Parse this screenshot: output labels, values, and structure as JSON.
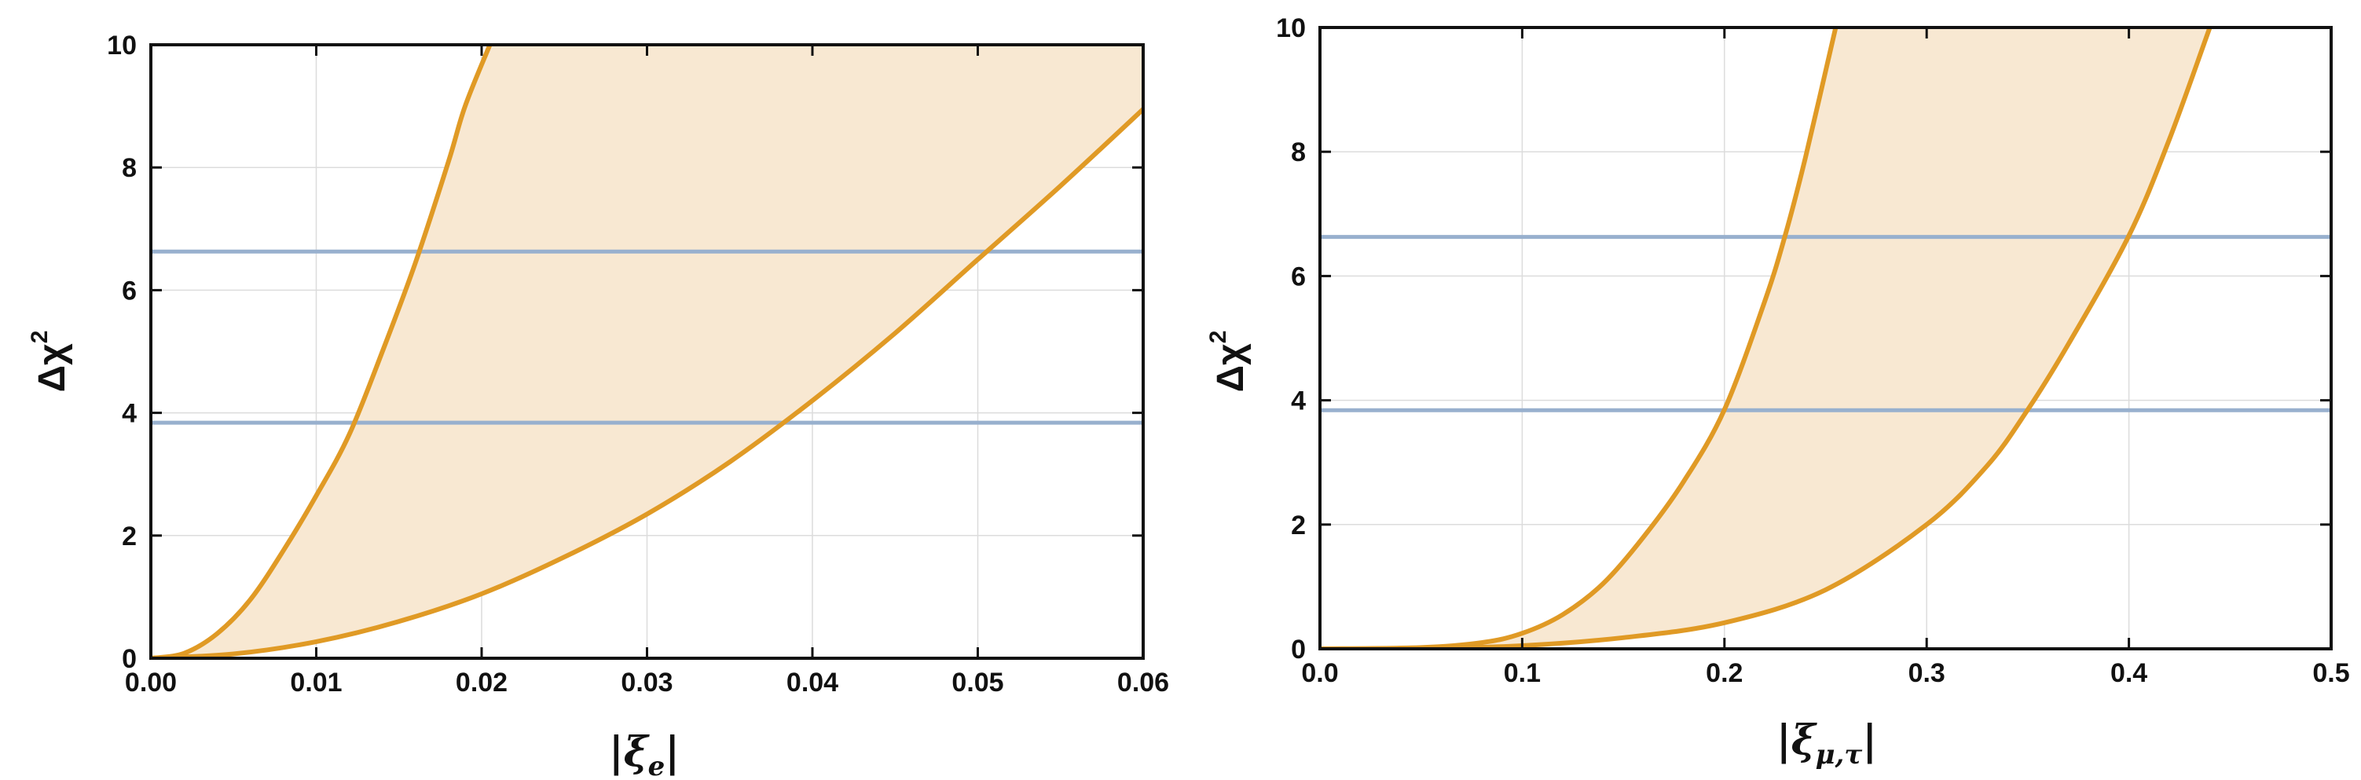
{
  "colors": {
    "curve": "#E09A25",
    "band": "#F8E8D2",
    "hline": "#98B0CE",
    "grid": "#dcdcdc",
    "frame": "#111111"
  },
  "chart_data": [
    {
      "type": "area",
      "xlabel_main": "|ξ",
      "xlabel_sub": "e",
      "xlabel_close": "|",
      "ylabel_main": "Δχ",
      "ylabel_sup": "2",
      "xlim": [
        0,
        0.06
      ],
      "ylim": [
        0,
        10
      ],
      "xticks": [
        "0.00",
        "0.01",
        "0.02",
        "0.03",
        "0.04",
        "0.05",
        "0.06"
      ],
      "yticks": [
        "0",
        "2",
        "4",
        "6",
        "8",
        "10"
      ],
      "grid": true,
      "series": [
        {
          "role": "upper-curve",
          "x": [
            0,
            0.002,
            0.004,
            0.006,
            0.008,
            0.01,
            0.012,
            0.014,
            0.016,
            0.018,
            0.019,
            0.0205
          ],
          "y": [
            0,
            0.08,
            0.4,
            0.95,
            1.75,
            2.65,
            3.65,
            5.0,
            6.45,
            8.1,
            9.0,
            10.0
          ]
        },
        {
          "role": "lower-curve",
          "x": [
            0,
            0.005,
            0.01,
            0.015,
            0.02,
            0.025,
            0.03,
            0.035,
            0.04,
            0.045,
            0.05,
            0.055,
            0.06
          ],
          "y": [
            0,
            0.07,
            0.27,
            0.6,
            1.05,
            1.65,
            2.35,
            3.2,
            4.2,
            5.3,
            6.5,
            7.7,
            8.95
          ]
        }
      ],
      "hlines": [
        3.84,
        6.63
      ]
    },
    {
      "type": "area",
      "xlabel_main": "|ξ",
      "xlabel_sub": "μ,τ",
      "xlabel_close": "|",
      "ylabel_main": "Δχ",
      "ylabel_sup": "2",
      "xlim": [
        0,
        0.5
      ],
      "ylim": [
        0,
        10
      ],
      "xticks": [
        "0.0",
        "0.1",
        "0.2",
        "0.3",
        "0.4",
        "0.5"
      ],
      "yticks": [
        "0",
        "2",
        "4",
        "6",
        "8",
        "10"
      ],
      "grid": true,
      "series": [
        {
          "role": "upper-curve",
          "x": [
            0,
            0.05,
            0.08,
            0.1,
            0.12,
            0.14,
            0.16,
            0.18,
            0.2,
            0.22,
            0.23,
            0.24,
            0.255
          ],
          "y": [
            0,
            0.02,
            0.1,
            0.25,
            0.55,
            1.05,
            1.8,
            2.7,
            3.85,
            5.6,
            6.65,
            7.9,
            10.0
          ]
        },
        {
          "role": "lower-curve",
          "x": [
            0,
            0.05,
            0.1,
            0.15,
            0.2,
            0.25,
            0.3,
            0.33,
            0.35,
            0.37,
            0.4,
            0.42,
            0.44
          ],
          "y": [
            0,
            0.005,
            0.05,
            0.18,
            0.42,
            0.95,
            2.0,
            2.95,
            3.85,
            4.9,
            6.65,
            8.2,
            10.0
          ]
        }
      ],
      "hlines": [
        3.84,
        6.63
      ]
    }
  ]
}
